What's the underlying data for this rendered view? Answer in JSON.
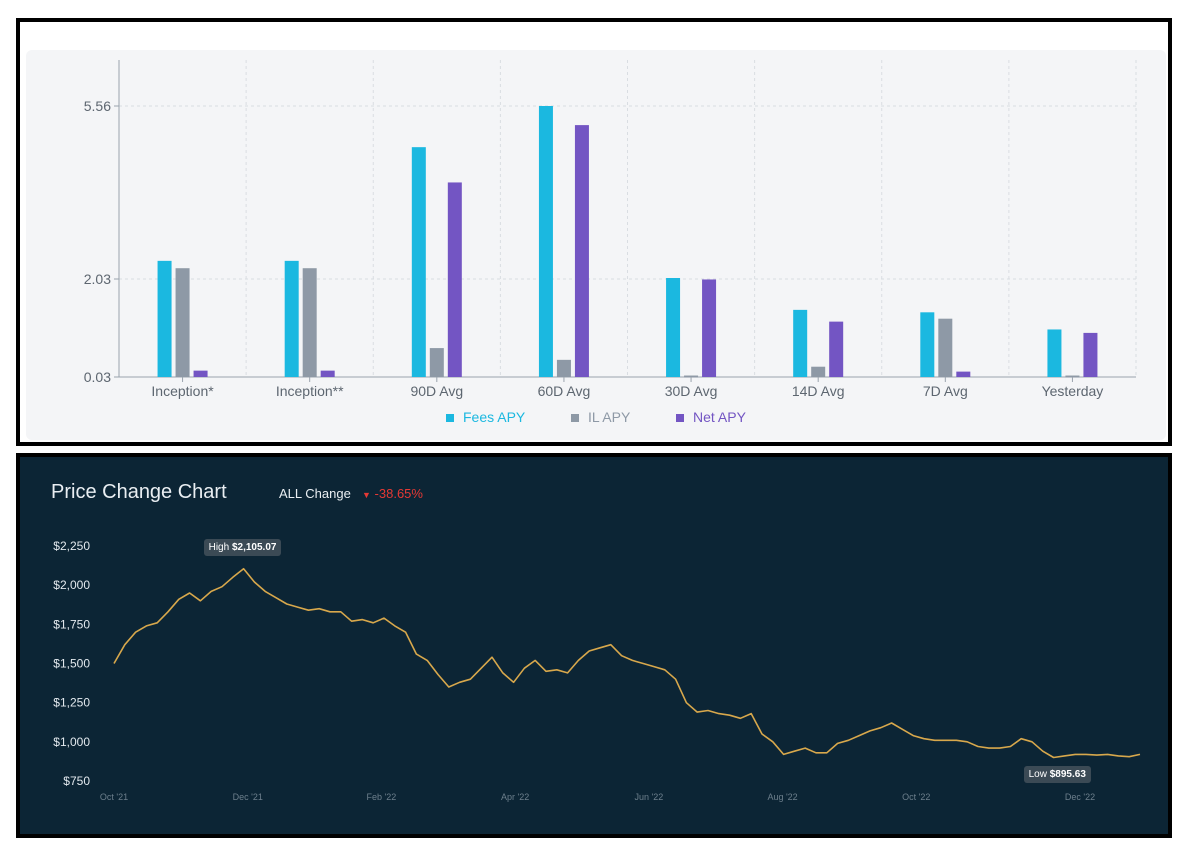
{
  "chart_data": [
    {
      "type": "bar",
      "categories": [
        "Inception*",
        "Inception**",
        "90D Avg",
        "60D Avg",
        "30D Avg",
        "14D Avg",
        "7D Avg",
        "Yesterday"
      ],
      "series": [
        {
          "name": "Fees APY",
          "color": "#1bb8e0",
          "values": [
            2.4,
            2.4,
            4.72,
            5.56,
            2.05,
            1.4,
            1.35,
            1.0
          ]
        },
        {
          "name": "IL APY",
          "color": "#8e99a6",
          "values": [
            2.25,
            2.25,
            0.62,
            0.38,
            0.06,
            0.24,
            1.22,
            0.06
          ]
        },
        {
          "name": "Net APY",
          "color": "#7355c3",
          "values": [
            0.16,
            0.16,
            4.0,
            5.17,
            2.02,
            1.16,
            0.14,
            0.93
          ]
        }
      ],
      "yticks": [
        "5.56",
        "2.03",
        "0.03"
      ],
      "ylim": [
        0.03,
        5.56
      ],
      "grid": true,
      "legend_position": "bottom"
    },
    {
      "type": "line",
      "title": "Price Change Chart",
      "change_label": "ALL Change",
      "change_value": "-38.65%",
      "change_arrow": "▼",
      "change_color": "#e53935",
      "line_color": "#d8a84c",
      "yticks": [
        "$2,250",
        "$2,000",
        "$1,750",
        "$1,500",
        "$1,250",
        "$1,000",
        "$750"
      ],
      "ytick_values": [
        2250,
        2000,
        1750,
        1500,
        1250,
        1000,
        750
      ],
      "xticks": [
        "Oct '21",
        "Dec '21",
        "Feb '22",
        "Apr '22",
        "Jun '22",
        "Aug '22",
        "Oct '22",
        "Dec '22"
      ],
      "ylim": [
        750,
        2250
      ],
      "high_label": "High",
      "high_value": "$2,105.07",
      "low_label": "Low",
      "low_value": "$895.63",
      "series": [
        {
          "values": [
            1500,
            1620,
            1700,
            1740,
            1760,
            1830,
            1910,
            1950,
            1900,
            1960,
            1990,
            2050,
            2105,
            2020,
            1960,
            1920,
            1880,
            1860,
            1840,
            1850,
            1830,
            1830,
            1770,
            1780,
            1760,
            1790,
            1740,
            1700,
            1560,
            1520,
            1430,
            1350,
            1380,
            1400,
            1470,
            1540,
            1440,
            1380,
            1470,
            1520,
            1450,
            1460,
            1440,
            1520,
            1580,
            1600,
            1620,
            1550,
            1520,
            1500,
            1480,
            1460,
            1400,
            1250,
            1190,
            1200,
            1180,
            1170,
            1150,
            1180,
            1050,
            1000,
            920,
            940,
            960,
            930,
            930,
            990,
            1010,
            1040,
            1070,
            1090,
            1120,
            1080,
            1040,
            1020,
            1010,
            1010,
            1010,
            1000,
            970,
            960,
            960,
            970,
            1020,
            1000,
            940,
            900,
            910,
            920,
            920,
            915,
            920,
            910,
            905,
            920
          ]
        }
      ]
    }
  ]
}
